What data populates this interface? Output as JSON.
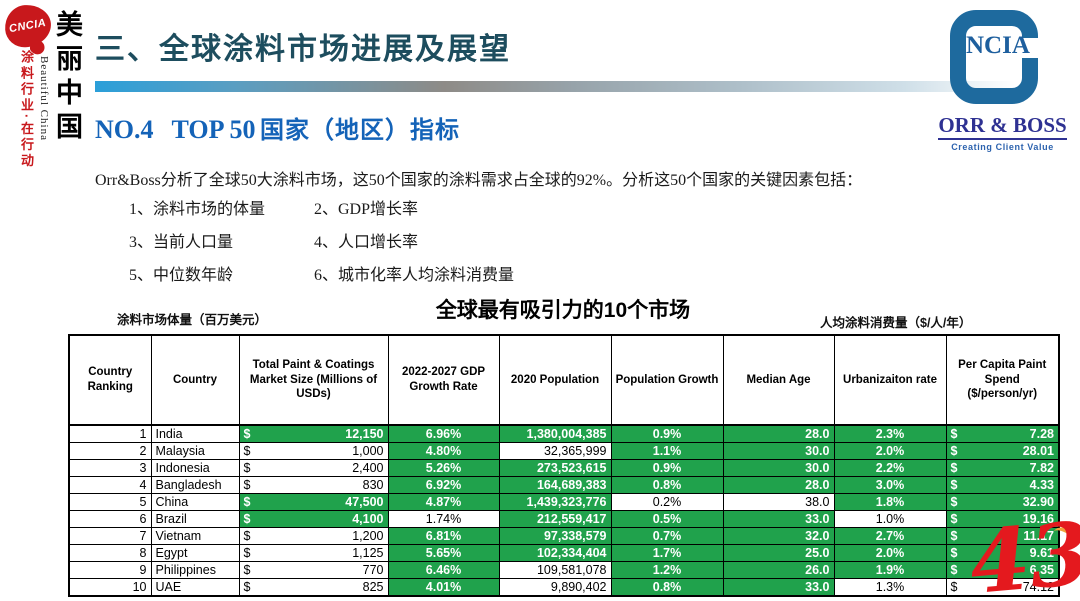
{
  "colors": {
    "green": "#20a24c",
    "accent_blue": "#1463b8",
    "title_teal": "#1d4d5e",
    "brand_red": "#c8181c",
    "logo_blue": "#1e6a9e",
    "orr_blue": "#2e3192",
    "watermark_red": "#e4191e"
  },
  "branding_left": {
    "seal_text": "CNCIA",
    "vertical_title": "美丽中国",
    "vertical_subtitle": "Beautiful China",
    "vertical_slogan": "涂料行业·在行动"
  },
  "branding_right": {
    "logo_text": "NCIA",
    "company": "ORR & BOSS",
    "tagline": "Creating Client Value"
  },
  "header": {
    "section_title": "三、全球涂料市场进展及展望",
    "subtitle_no": "NO.4",
    "subtitle_top": "TOP 50",
    "subtitle_cn": "国家（地区）指标"
  },
  "intro": {
    "paragraph": "Orr&Boss分析了全球50大涂料市场，这50个国家的涂料需求占全球的92%。分析这50个国家的关键因素包括：",
    "factors": [
      "1、涂料市场的体量",
      "2、GDP增长率",
      "3、当前人口量",
      "4、人口增长率",
      "5、中位数年龄",
      "6、城市化率人均涂料消费量"
    ]
  },
  "chart_header": {
    "title": "全球最有吸引力的10个市场",
    "label_left": "涂料市场体量（百万美元）",
    "label_right": "人均涂料消费量（$/人/年）"
  },
  "table": {
    "currency_symbol": "$",
    "columns": [
      "Country Ranking",
      "Country",
      "Total Paint & Coatings Market Size (Millions of USDs)",
      "2022-2027 GDP Growth Rate",
      "2020 Population",
      "Population Growth",
      "Median Age",
      "Urbanizaiton rate",
      "Per Capita Paint Spend ($/person/yr)"
    ],
    "rows": [
      {
        "rank": "1",
        "country": "India",
        "market": "12,150",
        "gdp": "6.96%",
        "pop": "1,380,004,385",
        "popg": "0.9%",
        "age": "28.0",
        "urb": "2.3%",
        "cap": "7.28",
        "green": [
          1,
          1,
          1,
          1,
          1,
          1,
          1
        ]
      },
      {
        "rank": "2",
        "country": "Malaysia",
        "market": "1,000",
        "gdp": "4.80%",
        "pop": "32,365,999",
        "popg": "1.1%",
        "age": "30.0",
        "urb": "2.0%",
        "cap": "28.01",
        "green": [
          0,
          1,
          0,
          1,
          1,
          1,
          1
        ]
      },
      {
        "rank": "3",
        "country": "Indonesia",
        "market": "2,400",
        "gdp": "5.26%",
        "pop": "273,523,615",
        "popg": "0.9%",
        "age": "30.0",
        "urb": "2.2%",
        "cap": "7.82",
        "green": [
          0,
          1,
          1,
          1,
          1,
          1,
          1
        ]
      },
      {
        "rank": "4",
        "country": "Bangladesh",
        "market": "830",
        "gdp": "6.92%",
        "pop": "164,689,383",
        "popg": "0.8%",
        "age": "28.0",
        "urb": "3.0%",
        "cap": "4.33",
        "green": [
          0,
          1,
          1,
          1,
          1,
          1,
          1
        ]
      },
      {
        "rank": "5",
        "country": "China",
        "market": "47,500",
        "gdp": "4.87%",
        "pop": "1,439,323,776",
        "popg": "0.2%",
        "age": "38.0",
        "urb": "1.8%",
        "cap": "32.90",
        "green": [
          1,
          1,
          1,
          0,
          0,
          1,
          1
        ]
      },
      {
        "rank": "6",
        "country": "Brazil",
        "market": "4,100",
        "gdp": "1.74%",
        "pop": "212,559,417",
        "popg": "0.5%",
        "age": "33.0",
        "urb": "1.0%",
        "cap": "19.16",
        "green": [
          1,
          0,
          1,
          1,
          1,
          0,
          1
        ]
      },
      {
        "rank": "7",
        "country": "Vietnam",
        "market": "1,200",
        "gdp": "6.81%",
        "pop": "97,338,579",
        "popg": "0.7%",
        "age": "32.0",
        "urb": "2.7%",
        "cap": "11.17",
        "green": [
          0,
          1,
          1,
          1,
          1,
          1,
          1
        ]
      },
      {
        "rank": "8",
        "country": "Egypt",
        "market": "1,125",
        "gdp": "5.65%",
        "pop": "102,334,404",
        "popg": "1.7%",
        "age": "25.0",
        "urb": "2.0%",
        "cap": "9.61",
        "green": [
          0,
          1,
          1,
          1,
          1,
          1,
          1
        ]
      },
      {
        "rank": "9",
        "country": "Philippines",
        "market": "770",
        "gdp": "6.46%",
        "pop": "109,581,078",
        "popg": "1.2%",
        "age": "26.0",
        "urb": "1.9%",
        "cap": "6.35",
        "green": [
          0,
          1,
          0,
          1,
          1,
          1,
          1
        ]
      },
      {
        "rank": "10",
        "country": "UAE",
        "market": "825",
        "gdp": "4.01%",
        "pop": "9,890,402",
        "popg": "0.8%",
        "age": "33.0",
        "urb": "1.3%",
        "cap": "74.12",
        "green": [
          0,
          1,
          0,
          1,
          1,
          0,
          0
        ]
      }
    ]
  },
  "watermark": {
    "page_number": "43"
  }
}
